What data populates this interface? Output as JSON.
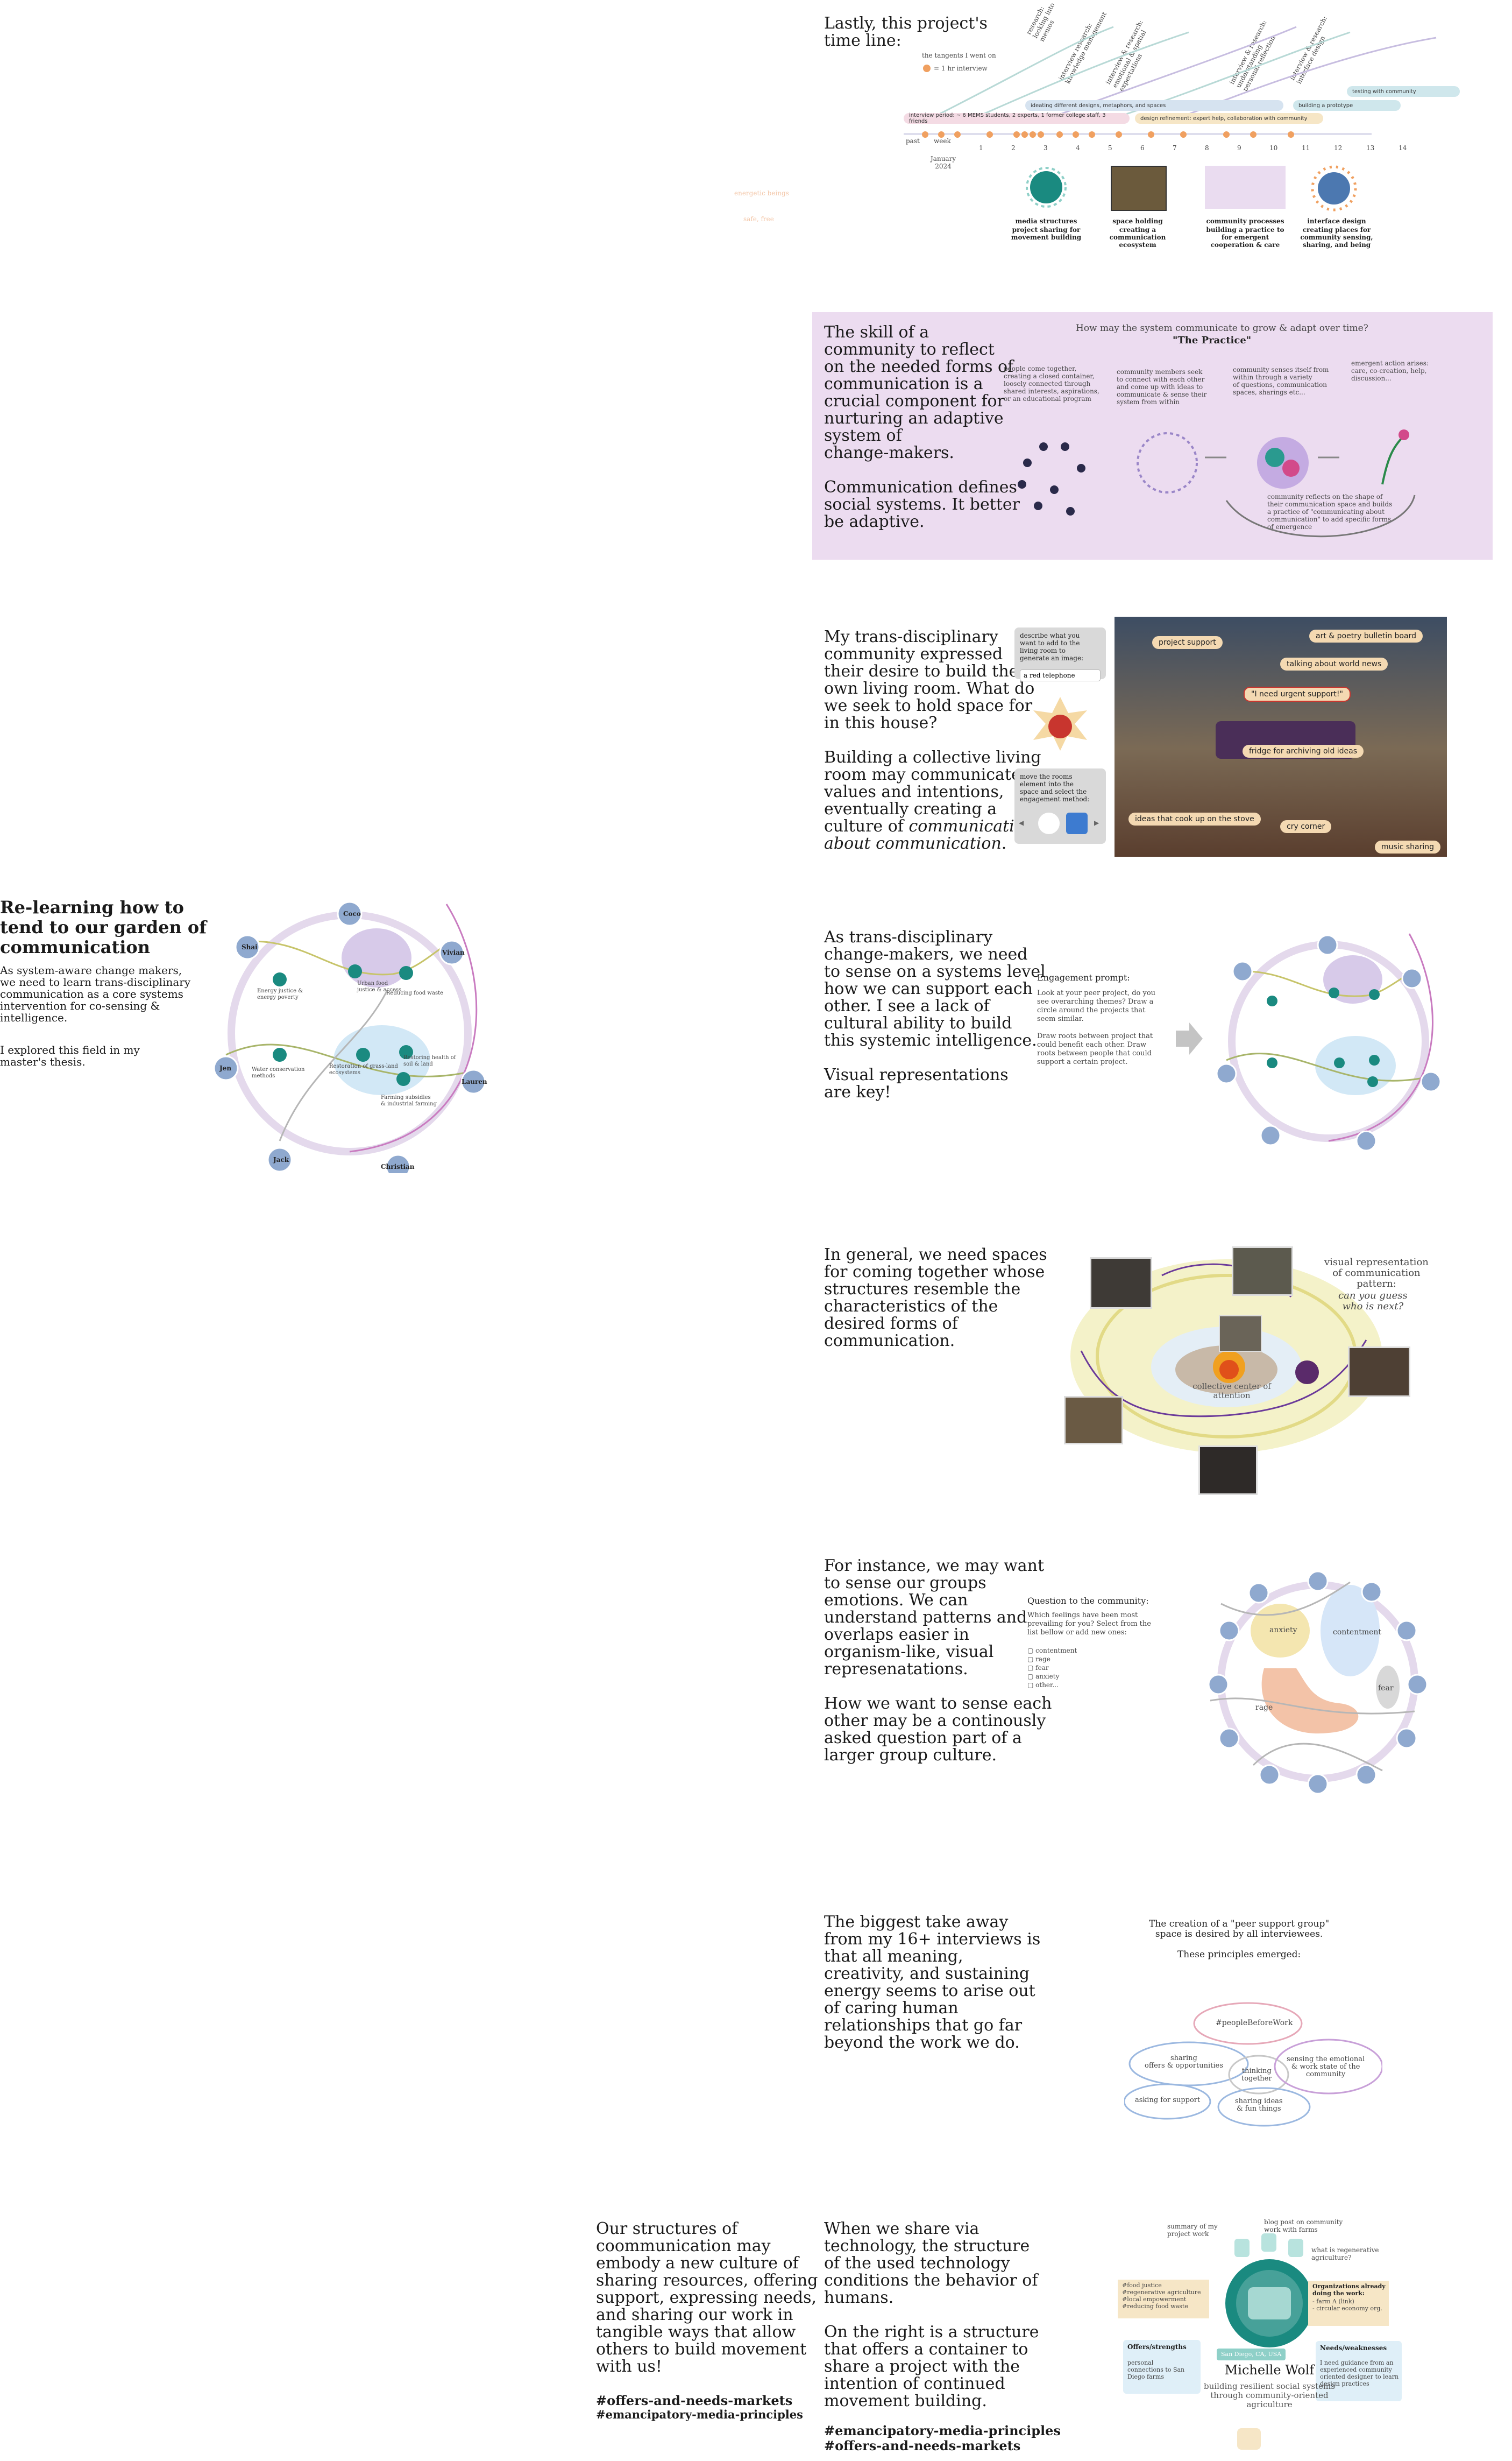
{
  "timeline": {
    "title": "Lastly, this project's\ntime line:",
    "legend_tangents": "the tangents I went on",
    "legend_interview": "= 1 hr interview",
    "research_labels": [
      "research:\nlooking into memos",
      "interview research:\nknowledge management",
      "interview & research:\nemotional & spatial\nexpectations",
      "interview & research:\nunderstanding\npersonal reflection",
      "interview & research:\ninterface design"
    ],
    "bars": {
      "testing": "testing with community",
      "prototype": "building a prototype",
      "ideating": "ideating different designs, metaphors, and spaces",
      "interview_period": "interview period: ~ 6 MEMS students, 2 experts, 1 former college staff, 3 friends",
      "design_refinement": "design refinement: expert help, collaboration with community"
    },
    "past": "past",
    "week": "week",
    "weeks": [
      "1",
      "2",
      "3",
      "4",
      "5",
      "6",
      "7",
      "8",
      "9",
      "10",
      "11",
      "12",
      "13",
      "14"
    ],
    "january": "January\n2024",
    "outputs": [
      {
        "title": "media structures",
        "desc": "project sharing for\nmovement building"
      },
      {
        "title": "space holding",
        "desc": "creating a communication\necosystem"
      },
      {
        "title": "community processes",
        "desc": "building a practice to\nfor emergent\ncooperation & care"
      },
      {
        "title": "interface design",
        "desc": "creating places for\ncommunity sensing,\nsharing, and being"
      }
    ],
    "faint_labels": [
      "energetic beings",
      "safe, free"
    ]
  },
  "practice": {
    "left_text": "The skill of a\ncommunity to reflect\non the needed forms of\ncommunication is a\ncrucial component for\nnurturing an adaptive\nsystem of\nchange-makers.\n\nCommunication defines\nsocial systems. It better\nbe adaptive.",
    "question": "How may the system communicate to grow & adapt over time?",
    "subtitle": "\"The Practice\"",
    "step1": "people come together,\ncreating a closed container,\nloosely connected through\nshared interests, aspirations,\nor an educational program",
    "step2": "community members seek\nto connect with each other\nand come up with ideas to\ncommunicate & sense their\nsystem from within",
    "step3": "community senses itself from\nwithin through a variety\nof questions, communication\nspaces, sharings etc...",
    "step4": "emergent action arises:\ncare, co-creation, help,\ndiscussion...",
    "step5": "community reflects on the shape of\ntheir communication space and builds\na practice of \"communicating about\ncommunication\" to add specific forms\nof emergence"
  },
  "living_room": {
    "text_main": "My trans-disciplinary\ncommunity expressed\ntheir desire to build their\nown living room. What do\nwe seek to hold space for\nin this house?\n\nBuilding a collective living\nroom may communicate\nvalues and intentions,\neventually creating a\nculture of ",
    "text_em": "communication\nabout communication",
    "text_end": ".",
    "prompt1": "describe what you\nwant to add to the\nliving room to\ngenerate an image:",
    "input_value": "a red telephone",
    "prompt2": "move the rooms\nelement into the\nspace and select the\nengagement method:",
    "tags": [
      "project support",
      "art & poetry bulletin board",
      "talking about world news",
      "\"I need urgent support!\"",
      "fridge for archiving old ideas",
      "ideas that cook up on the stove",
      "cry corner",
      "music sharing"
    ]
  },
  "garden": {
    "title": "Re-learning how to\ntend to our garden of\ncommunication",
    "para1": "As system-aware change makers,\nwe need to learn trans-disciplinary\ncommunication as a core systems\nintervention for co-sensing &\nintelligence.",
    "para2": "I explored this field in my\nmaster's thesis.",
    "people": [
      "Shai",
      "Coco",
      "Vivian",
      "Lauren",
      "Christian",
      "Jack",
      "Jen"
    ],
    "topics": [
      "Energy justice &\nenergy poverty",
      "Urban food\njustice & access",
      "Reducing food waste",
      "Water conservation\nmethods",
      "Restoration of grass-land\necosystems",
      "Restoring health of\nsoil & land",
      "Farming subsidies\n& industrial farming"
    ]
  },
  "sensing": {
    "text": "As trans-disciplinary\nchange-makers, we need\nto sense on a systems level\nhow we can support each\nother. I see a lack of\ncultural ability to build\nthis systemic intelligence.\n\nVisual representations\nare key!",
    "prompt_title": "Engagement prompt:",
    "prompt_body": "Look at your peer project, do you\nsee overarching themes? Draw a\ncircle around the projects that\nseem similar.\n\nDraw roots between project that\ncould benefit each other. Draw\nroots between people that could\nsupport a certain project."
  },
  "gathering": {
    "text": "In general, we need spaces\nfor coming together whose\nstructures resemble the\ncharacteristics of the\ndesired forms of\ncommunication.",
    "center": "collective center of\nattention",
    "caption_a": "visual representation\nof communication\npattern:",
    "caption_b": "can you guess\nwho is next?"
  },
  "emotions": {
    "text": "For instance, we may want\nto sense our groups\nemotions. We can\nunderstand patterns and\noverlaps easier in\norganism-like, visual\nrepresenatations.\n\nHow we want to sense each\nother may be a continously\nasked question part of a\nlarger group culture.",
    "q_title": "Question to the community:",
    "q_body": "Which feelings have been most\nprevailing for you? Select from the\nlist bellow or add new ones:",
    "options": [
      "contentment",
      "rage",
      "fear",
      "anxiety",
      "other..."
    ],
    "blob_labels": [
      "anxiety",
      "contentment",
      "fear",
      "rage"
    ]
  },
  "takeaway": {
    "text": "The biggest take away\nfrom my 16+ interviews is\nthat all meaning,\ncreativity, and sustaining\nenergy seems to arise out\nof caring human\nrelationships that go far\nbeyond the work we do.",
    "intro": "The creation of a \"peer support group\"\nspace is desired by all interviewees.\n\nThese principles emerged:",
    "clouds": [
      "#peopleBeforeWork",
      "sharing\noffers & opportunities",
      "thinking\ntogether",
      "sensing the emotional\n& work state of the\ncommunity",
      "asking for support",
      "sharing ideas\n& fun things"
    ]
  },
  "structures": {
    "left_text": "Our structures of\ncoommunication may\nembody a new culture of\nsharing resources, offering\nsupport, expressing needs,\nand sharing our work in\ntangible ways that allow\nothers to build movement\nwith us!",
    "left_tag1": "#offers-and-needs-markets",
    "left_tag2": "#emancipatory-media-principles",
    "mid_text": "When we share via\ntechnology, the structure\nof the used technology\nconditions the behavior of\nhumans.\n\nOn the right is a structure\nthat offers a container to\nshare a project with the\nintention of continued\nmovement building.",
    "mid_tag1": "#emancipatory-media-principles",
    "mid_tag2": "#offers-and-needs-markets",
    "card": {
      "summary": "summary of my\nproject work",
      "blog": "blog post on community\nwork with farms",
      "question": "what is regenerative\nagriculture?",
      "tags": "#food justice\n#regenerative agriculture\n#local empowerment\n#reducing food waste",
      "orgs_title": "Organizations already\ndoing the work:",
      "orgs_body": "- farm A (link)\n- circular economy org.",
      "offers_title": "Offers/strengths",
      "offers_body": "personal\nconnections to San\nDiego farms",
      "needs_title": "Needs/weaknesses",
      "needs_body": "I need guidance from an\nexperienced community\noriented designer to learn\ndesign practices",
      "location": "San Diego, CA, USA",
      "name": "Michelle Wolf",
      "subtitle": "building resilient social systems\nthrough community-oriented\nagriculture"
    }
  },
  "colors": {
    "lavender_panel": "#ecdcf0",
    "node_blue": "#8fa9cf",
    "teal": "#1a8a80",
    "orange": "#f0a060",
    "tag_peach": "#f4d9b2"
  }
}
